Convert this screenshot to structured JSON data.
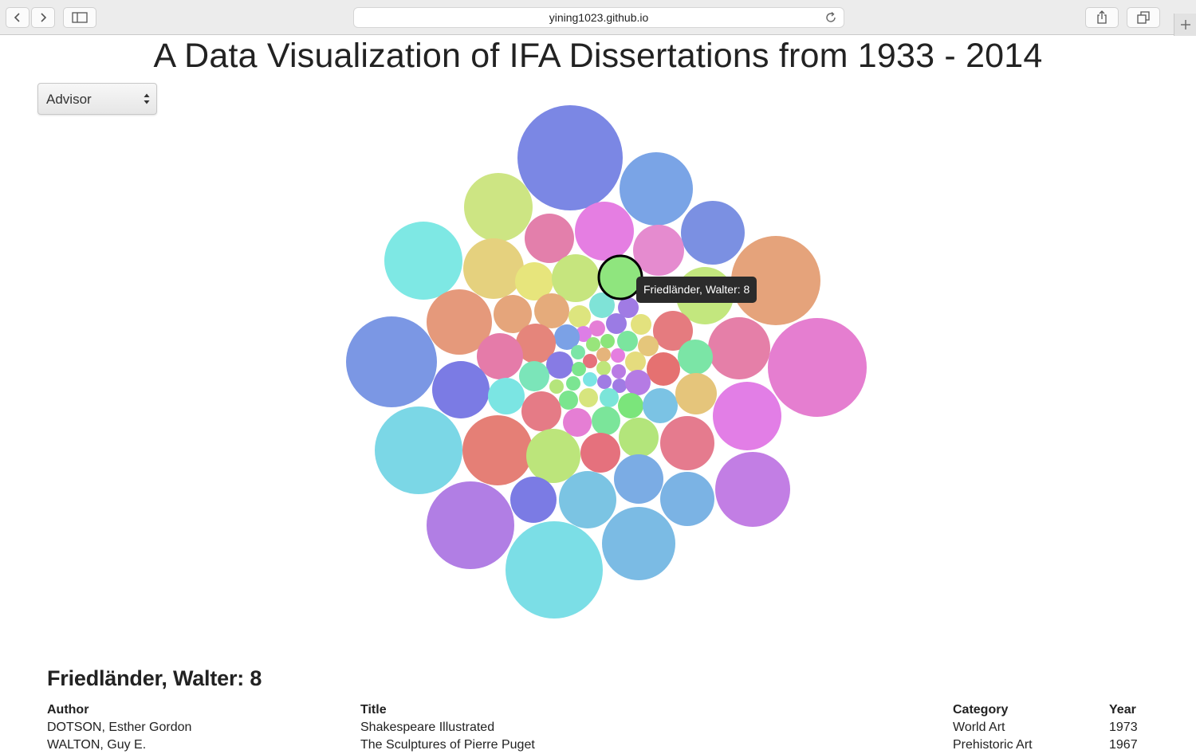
{
  "browser": {
    "url": "yining1023.github.io"
  },
  "page": {
    "title": "A Data Visualization of IFA Dissertations from 1933 - 2014",
    "group_by": {
      "selected": "Advisor"
    }
  },
  "tooltip": {
    "text": "Friedländer, Walter: 8"
  },
  "detail": {
    "heading": "Friedländer, Walter: 8",
    "columns": [
      "Author",
      "Title",
      "Category",
      "Year"
    ],
    "rows": [
      [
        "DOTSON, Esther Gordon",
        "Shakespeare Illustrated",
        "World Art",
        "1973"
      ],
      [
        "WALTON, Guy E.",
        "The Sculptures of Pierre Puget",
        "Prehistoric Art",
        "1967"
      ]
    ]
  },
  "colors": {
    "highlight_stroke": "#000000",
    "tooltip_bg": "#2b2b2b"
  }
}
